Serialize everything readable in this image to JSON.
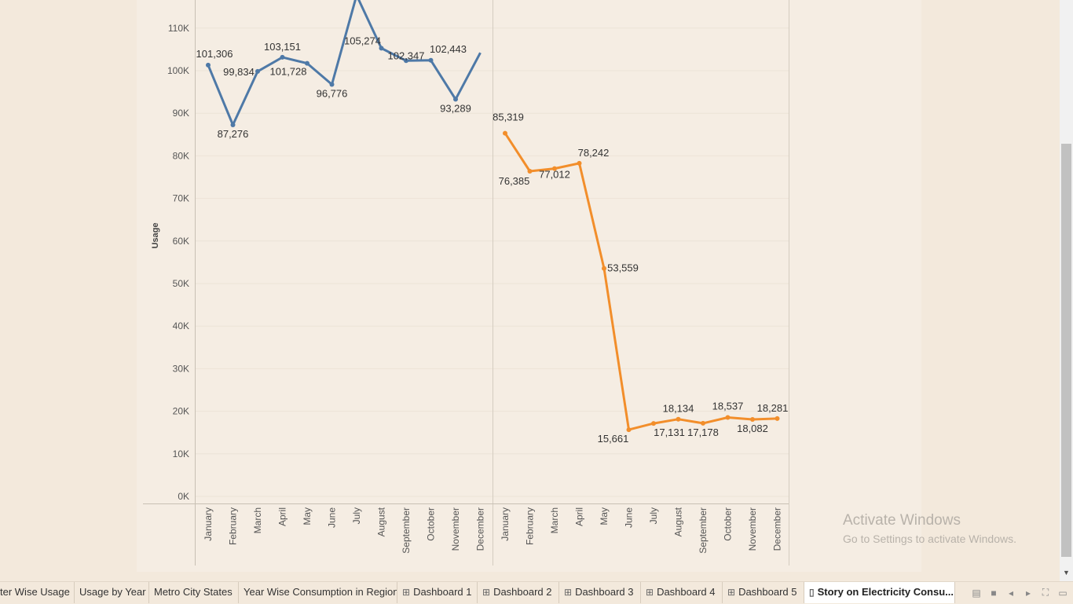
{
  "chart_data": {
    "type": "line",
    "ylabel": "Usage",
    "ylim": [
      0,
      117000
    ],
    "y_ticks": [
      "0K",
      "10K",
      "20K",
      "30K",
      "40K",
      "50K",
      "60K",
      "70K",
      "80K",
      "90K",
      "100K",
      "110K"
    ],
    "categories": [
      "January",
      "February",
      "March",
      "April",
      "May",
      "June",
      "July",
      "August",
      "September",
      "October",
      "November",
      "December"
    ],
    "panels": [
      {
        "color": "#4e79a7",
        "values": [
          101306,
          87276,
          99834,
          103151,
          101728,
          96776,
          118500,
          105274,
          102347,
          102443,
          93289,
          104200
        ],
        "labels": [
          "101,306",
          "87,276",
          "99,834",
          "103,151",
          "101,728",
          "96,776",
          "",
          "105,274",
          "102,347",
          "102,443",
          "93,289",
          ""
        ]
      },
      {
        "color": "#f28e2b",
        "values": [
          85319,
          76385,
          77012,
          78242,
          53559,
          15661,
          17131,
          18134,
          17178,
          18537,
          18082,
          18281
        ],
        "labels": [
          "85,319",
          "76,385",
          "77,012",
          "78,242",
          "53,559",
          "15,661",
          "17,131",
          "18,134",
          "17,178",
          "18,537",
          "18,082",
          "18,281"
        ]
      }
    ]
  },
  "watermark": {
    "title": "Activate Windows",
    "subtitle": "Go to Settings to activate Windows."
  },
  "tabs": [
    {
      "label": "ter Wise Usage",
      "icon": "",
      "active": false
    },
    {
      "label": "Usage by Year",
      "icon": "",
      "active": false
    },
    {
      "label": "Metro City States",
      "icon": "",
      "active": false
    },
    {
      "label": "Year Wise Consumption in Region",
      "icon": "",
      "active": false
    },
    {
      "label": "Dashboard 1",
      "icon": "dashboard-icon",
      "active": false
    },
    {
      "label": "Dashboard 2",
      "icon": "dashboard-icon",
      "active": false
    },
    {
      "label": "Dashboard 3",
      "icon": "dashboard-icon",
      "active": false
    },
    {
      "label": "Dashboard 4",
      "icon": "dashboard-icon",
      "active": false
    },
    {
      "label": "Dashboard 5",
      "icon": "dashboard-icon",
      "active": false
    },
    {
      "label": "Story on Electricity Consu...",
      "icon": "story-icon",
      "active": true
    }
  ],
  "tab_controls": [
    "film-strip-icon",
    "single-sheet-icon",
    "previous-icon",
    "next-icon",
    "fullscreen-icon",
    "present-icon"
  ]
}
